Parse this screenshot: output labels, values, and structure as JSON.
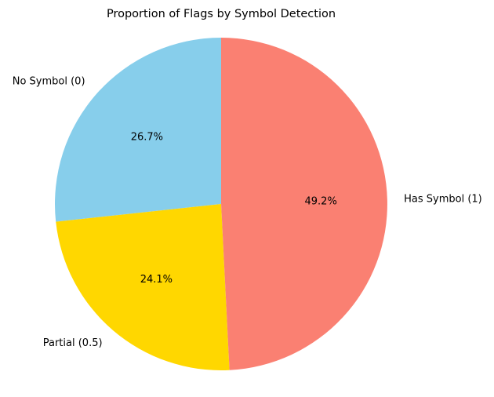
{
  "chart_data": {
    "type": "pie",
    "title": "Proportion of Flags by Symbol Detection",
    "start_angle_deg": 90,
    "direction": "counterclockwise",
    "slices": [
      {
        "label": "No Symbol (0)",
        "value": 26.7,
        "pct_label": "26.7%",
        "color": "#87CEEB"
      },
      {
        "label": "Partial (0.5)",
        "value": 24.1,
        "pct_label": "24.1%",
        "color": "#FFD700"
      },
      {
        "label": "Has Symbol (1)",
        "value": 49.2,
        "pct_label": "49.2%",
        "color": "#FA8072"
      }
    ]
  }
}
